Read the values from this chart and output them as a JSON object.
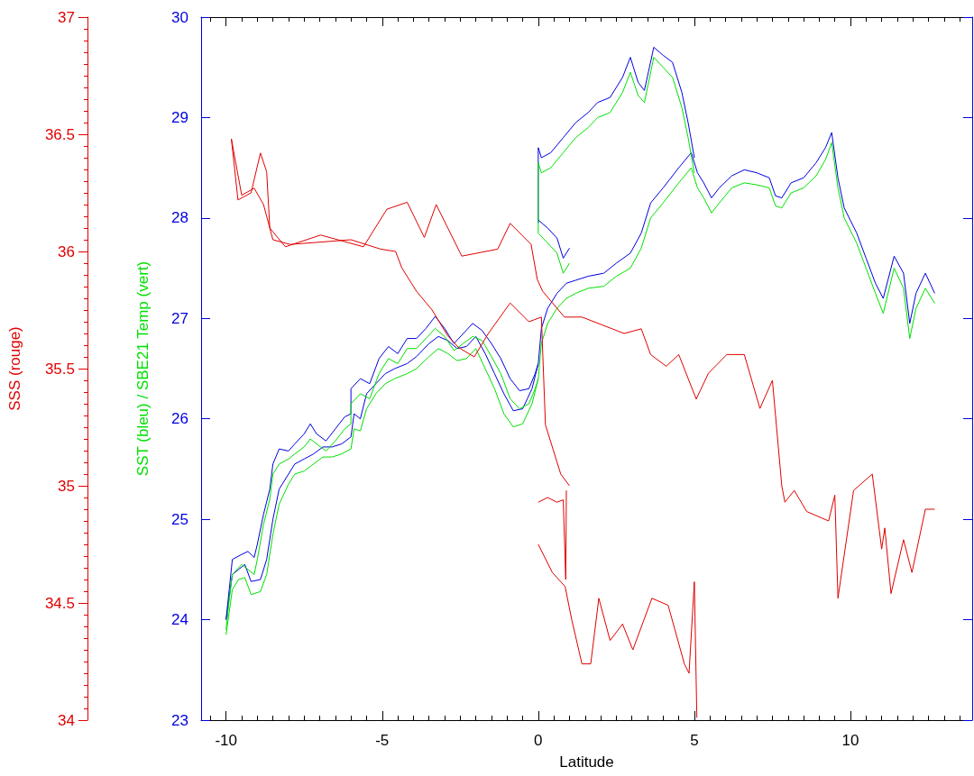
{
  "chart_data": {
    "type": "line",
    "xlabel": "Latitude",
    "ylabel": "SST (bleu) / SBE21 Temp (vert)",
    "y2label": "SSS (rouge)",
    "xlim": [
      -10.8,
      13.9
    ],
    "xticks": [
      -10,
      -5,
      0,
      5,
      10
    ],
    "ylim": [
      23,
      30
    ],
    "yticks": [
      23,
      24,
      25,
      26,
      27,
      28,
      29,
      30
    ],
    "y2lim": [
      34,
      37
    ],
    "y2ticks": [
      34,
      34.5,
      35,
      35.5,
      36,
      36.5,
      37
    ],
    "grid": false,
    "marker": "none",
    "line_style": "solid",
    "series": [
      {
        "color": "#0000e0",
        "x": [
          -10,
          -9.9,
          -9.8,
          -9.5,
          -9.3,
          -9.1,
          -9.0,
          -8.8,
          -8.6,
          -8.5,
          -8.3,
          -8.0,
          -7.8,
          -7.5,
          -7.3,
          -7.1,
          -6.8,
          -6.5,
          -6.2,
          -6.0,
          -6.0,
          -5.7,
          -5.4,
          -5.1,
          -4.8,
          -4.5,
          -4.2,
          -3.9,
          -3.6,
          -3.3,
          -3.0,
          -2.7,
          -2.4,
          -2.1,
          -1.8,
          -1.5,
          -1.2,
          -0.9,
          -0.6,
          -0.3,
          -0.1,
          0.0,
          0.1,
          0.3,
          0.6,
          0.9,
          1.2,
          1.6,
          2.1,
          2.5,
          2.95,
          3.3,
          3.6,
          4.0,
          4.5,
          4.9,
          5.1,
          5.3,
          5.55,
          5.8,
          6.2,
          6.6,
          7.0,
          7.4,
          7.6,
          7.8,
          8.1,
          8.5,
          8.9,
          9.2,
          9.4,
          9.6,
          9.8,
          10.2,
          10.5,
          10.8,
          11.05,
          11.4,
          11.7,
          11.9,
          12.1,
          12.4,
          12.7,
          null,
          -10,
          -9.8,
          -9.6,
          -9.4,
          -9.2,
          -8.9,
          -8.7,
          -8.5,
          -8.3,
          -8.0,
          -7.8,
          -7.5,
          -7.2,
          -6.9,
          -6.6,
          -6.3,
          -6.0,
          -5.9,
          -5.7,
          -5.5,
          -5.2,
          -4.9,
          -4.6,
          -4.2,
          -3.9,
          -3.5,
          -3.2,
          -2.9,
          -2.6,
          -2.3,
          -2.0,
          -1.7,
          -1.4,
          -1.1,
          -0.8,
          -0.5,
          -0.2,
          0.0,
          null,
          0.0,
          0.0,
          0.1,
          0.4,
          0.8,
          1.2,
          1.6,
          1.9,
          2.3,
          2.7,
          2.95,
          3.2,
          3.4,
          3.7,
          4.0,
          4.3,
          4.6,
          4.8,
          5.0,
          null,
          0.0,
          0.3,
          0.6,
          0.8,
          1.0
        ],
        "values": [
          24.0,
          24.3,
          24.6,
          24.65,
          24.68,
          24.62,
          24.75,
          25.05,
          25.3,
          25.55,
          25.7,
          25.68,
          25.75,
          25.85,
          25.95,
          25.85,
          25.78,
          25.9,
          26.02,
          26.05,
          26.3,
          26.4,
          26.35,
          26.6,
          26.72,
          26.65,
          26.8,
          26.8,
          26.9,
          27.02,
          26.9,
          26.75,
          26.85,
          26.95,
          26.88,
          26.75,
          26.6,
          26.4,
          26.28,
          26.3,
          26.45,
          26.55,
          26.9,
          27.1,
          27.25,
          27.35,
          27.38,
          27.42,
          27.45,
          27.55,
          27.65,
          27.85,
          28.15,
          28.3,
          28.5,
          28.65,
          28.45,
          28.35,
          28.2,
          28.3,
          28.42,
          28.48,
          28.45,
          28.4,
          28.22,
          28.2,
          28.35,
          28.4,
          28.55,
          28.7,
          28.85,
          28.4,
          28.1,
          27.85,
          27.6,
          27.35,
          27.2,
          27.62,
          27.45,
          26.95,
          27.25,
          27.45,
          27.25,
          null,
          24.0,
          24.45,
          24.5,
          24.55,
          24.38,
          24.4,
          24.6,
          25.0,
          25.3,
          25.45,
          25.55,
          25.6,
          25.65,
          25.72,
          25.72,
          25.75,
          25.82,
          26.05,
          26.0,
          26.25,
          26.35,
          26.45,
          26.5,
          26.55,
          26.62,
          26.75,
          26.82,
          26.78,
          26.7,
          26.72,
          26.82,
          26.65,
          26.45,
          26.25,
          26.08,
          26.1,
          26.3,
          26.55,
          null,
          27.95,
          28.7,
          28.6,
          28.65,
          28.8,
          28.95,
          29.05,
          29.15,
          29.2,
          29.4,
          29.6,
          29.35,
          29.27,
          29.7,
          29.62,
          29.55,
          29.25,
          28.95,
          28.6,
          null,
          27.98,
          27.9,
          27.8,
          27.6,
          27.7
        ]
      },
      {
        "color": "#00e000",
        "x": [
          -10,
          -9.9,
          -9.8,
          -9.5,
          -9.3,
          -9.1,
          -9.0,
          -8.8,
          -8.6,
          -8.5,
          -8.3,
          -8.0,
          -7.8,
          -7.5,
          -7.3,
          -7.1,
          -6.8,
          -6.5,
          -6.2,
          -6.0,
          -6.0,
          -5.7,
          -5.4,
          -5.1,
          -4.8,
          -4.5,
          -4.2,
          -3.9,
          -3.6,
          -3.3,
          -3.0,
          -2.7,
          -2.4,
          -2.1,
          -1.8,
          -1.5,
          -1.2,
          -0.9,
          -0.6,
          -0.3,
          -0.1,
          0.0,
          0.1,
          0.3,
          0.6,
          0.9,
          1.2,
          1.6,
          2.1,
          2.5,
          2.95,
          3.3,
          3.6,
          4.0,
          4.5,
          4.9,
          5.1,
          5.3,
          5.55,
          5.8,
          6.2,
          6.6,
          7.0,
          7.4,
          7.6,
          7.8,
          8.1,
          8.5,
          8.9,
          9.2,
          9.4,
          9.6,
          9.8,
          10.2,
          10.5,
          10.8,
          11.05,
          11.4,
          11.7,
          11.9,
          12.1,
          12.4,
          12.7,
          null,
          -10,
          -9.8,
          -9.6,
          -9.4,
          -9.2,
          -8.9,
          -8.7,
          -8.5,
          -8.3,
          -8.0,
          -7.8,
          -7.5,
          -7.2,
          -6.9,
          -6.6,
          -6.3,
          -6.0,
          -5.9,
          -5.7,
          -5.5,
          -5.2,
          -4.9,
          -4.6,
          -4.2,
          -3.9,
          -3.5,
          -3.2,
          -2.9,
          -2.6,
          -2.3,
          -2.0,
          -1.7,
          -1.4,
          -1.1,
          -0.8,
          -0.5,
          -0.2,
          0.0,
          null,
          0.0,
          0.0,
          0.1,
          0.4,
          0.8,
          1.2,
          1.6,
          1.9,
          2.3,
          2.7,
          2.95,
          3.2,
          3.4,
          3.7,
          4.0,
          4.3,
          4.6,
          4.8,
          5.0,
          null,
          0.0,
          0.3,
          0.6,
          0.8,
          1.0
        ],
        "values": [
          23.9,
          24.2,
          24.45,
          24.55,
          24.5,
          24.45,
          24.6,
          24.95,
          25.2,
          25.45,
          25.55,
          25.6,
          25.65,
          25.72,
          25.8,
          25.75,
          25.68,
          25.78,
          25.9,
          25.95,
          26.15,
          26.25,
          26.2,
          26.45,
          26.6,
          26.55,
          26.7,
          26.7,
          26.8,
          26.9,
          26.82,
          26.68,
          26.75,
          26.82,
          26.78,
          26.62,
          26.45,
          26.2,
          26.1,
          26.15,
          26.3,
          26.4,
          26.75,
          26.95,
          27.1,
          27.2,
          27.25,
          27.3,
          27.32,
          27.42,
          27.5,
          27.7,
          28.0,
          28.15,
          28.35,
          28.5,
          28.3,
          28.2,
          28.05,
          28.15,
          28.3,
          28.35,
          28.33,
          28.3,
          28.12,
          28.1,
          28.25,
          28.3,
          28.42,
          28.58,
          28.75,
          28.3,
          28.0,
          27.75,
          27.5,
          27.25,
          27.05,
          27.5,
          27.3,
          26.8,
          27.1,
          27.3,
          27.15,
          null,
          23.85,
          24.3,
          24.4,
          24.42,
          24.25,
          24.28,
          24.45,
          24.85,
          25.15,
          25.35,
          25.45,
          25.48,
          25.55,
          25.62,
          25.62,
          25.65,
          25.7,
          25.9,
          25.88,
          26.1,
          26.25,
          26.35,
          26.4,
          26.45,
          26.5,
          26.62,
          26.7,
          26.65,
          26.58,
          26.6,
          26.7,
          26.5,
          26.3,
          26.05,
          25.92,
          25.95,
          26.15,
          26.4,
          null,
          27.85,
          28.55,
          28.45,
          28.5,
          28.65,
          28.8,
          28.9,
          29.0,
          29.05,
          29.25,
          29.45,
          29.22,
          29.15,
          29.6,
          29.5,
          29.4,
          29.1,
          28.8,
          28.45,
          null,
          27.85,
          27.75,
          27.65,
          27.45,
          27.55
        ]
      },
      {
        "color": "#e00000",
        "axis": "y2",
        "x": [
          -9.83,
          -9.62,
          -9.2,
          -8.9,
          -8.7,
          -8.6,
          -8.1,
          -6.97,
          -5.6,
          -4.85,
          -4.2,
          -3.65,
          -3.27,
          -2.45,
          -1.3,
          -0.9,
          -0.23,
          -0.03,
          0.14,
          0.84,
          1.4,
          2.75,
          3.3,
          3.6,
          4.1,
          4.5,
          5.06,
          5.45,
          6.04,
          6.6,
          7.1,
          7.5,
          7.8,
          7.9,
          8.2,
          8.6,
          9.3,
          9.5,
          9.6,
          10.1,
          10.7,
          11.0,
          11.1,
          11.3,
          11.7,
          11.97,
          12.4,
          12.7,
          null,
          -9.83,
          -9.5,
          -9.1,
          -8.8,
          -8.5,
          -7.95,
          -6.0,
          -5.05,
          -4.57,
          -4.37,
          -3.9,
          -3.4,
          -2.9,
          -2.55,
          -2.05,
          -1.6,
          -0.9,
          -0.3,
          0.1,
          0.23,
          0.72,
          1.0,
          null,
          0.0,
          0.3,
          0.6,
          0.8,
          0.88,
          0.9,
          null,
          0.0,
          0.45,
          0.86,
          1.07,
          1.4,
          1.68,
          1.94,
          2.3,
          2.7,
          3.03,
          3.64,
          4.16,
          4.68,
          4.83,
          5.0,
          5.08
        ],
        "values": [
          36.48,
          36.22,
          36.25,
          36.42,
          36.34,
          36.1,
          36.02,
          36.07,
          36.02,
          36.18,
          36.21,
          36.06,
          36.2,
          35.98,
          36.01,
          36.12,
          36.03,
          35.88,
          35.83,
          35.72,
          35.72,
          35.65,
          35.67,
          35.56,
          35.51,
          35.56,
          35.37,
          35.48,
          35.56,
          35.56,
          35.33,
          35.45,
          35.0,
          34.93,
          34.98,
          34.89,
          34.85,
          34.96,
          34.52,
          34.98,
          35.05,
          34.73,
          34.82,
          34.54,
          34.77,
          34.63,
          34.9,
          34.9,
          null,
          36.48,
          36.24,
          36.27,
          36.2,
          36.05,
          36.03,
          36.05,
          36.01,
          36.0,
          35.93,
          35.83,
          35.75,
          35.64,
          35.59,
          35.55,
          35.65,
          35.78,
          35.7,
          35.72,
          35.26,
          35.05,
          35.0,
          null,
          34.93,
          34.95,
          34.93,
          34.94,
          34.6,
          34.98,
          null,
          34.75,
          34.63,
          34.57,
          34.43,
          34.24,
          34.24,
          34.52,
          34.34,
          34.41,
          34.3,
          34.52,
          34.49,
          34.24,
          34.2,
          34.59,
          34.01
        ]
      }
    ]
  }
}
